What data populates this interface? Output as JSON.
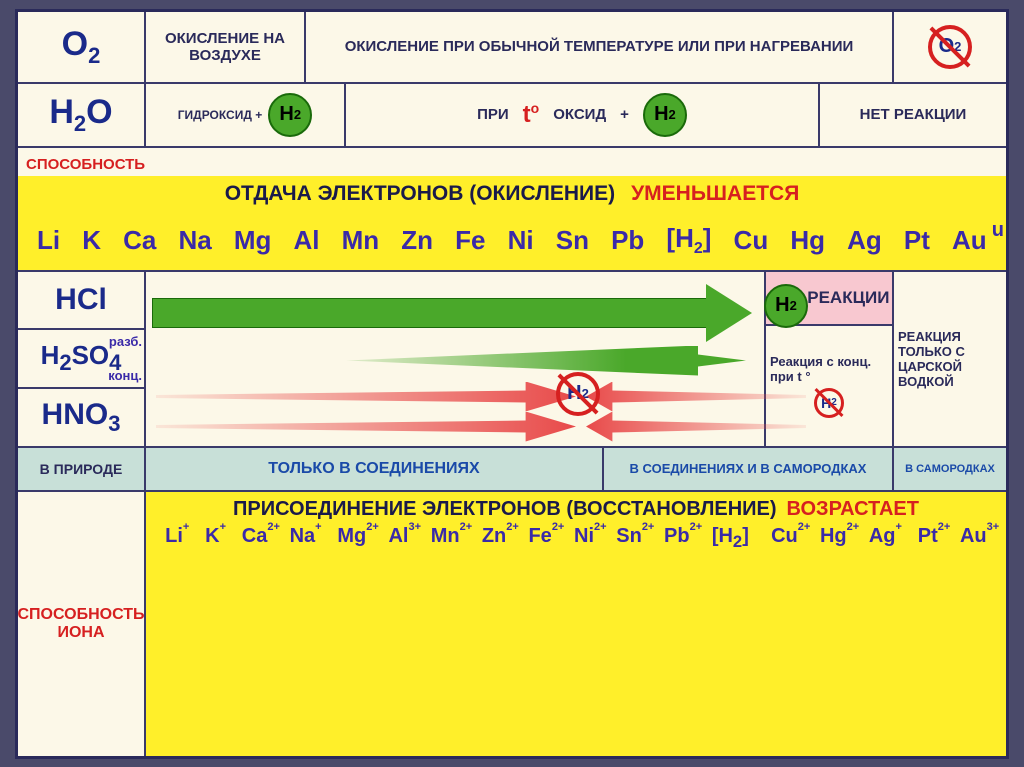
{
  "colors": {
    "bg": "#fcf8e8",
    "border": "#2a2a5a",
    "blue": "#1a2a8a",
    "red": "#d62020",
    "green": "#4aa82a",
    "yellow": "#ffef2a",
    "pink": "#f8c8d0",
    "teal": "#c8e0d8",
    "text_blue": "#1a4aa8"
  },
  "row_o2": {
    "formula": "O₂",
    "c1": "ОКИСЛЕНИЕ НА ВОЗДУХЕ",
    "c2": "ОКИСЛЕНИЕ ПРИ ОБЫЧНОЙ ТЕМПЕРАТУРЕ ИЛИ ПРИ НАГРЕВАНИИ",
    "no_sign": "O₂"
  },
  "row_h2o": {
    "formula": "H₂O",
    "c1_pre": "ГИДРОКСИД +",
    "c2_pre": "ПРИ",
    "c2_t": "t°",
    "c2_post": "ОКСИД",
    "c2_plus": "+",
    "c3": "НЕТ РЕАКЦИИ"
  },
  "series1": {
    "title1": "ОТДАЧА ЭЛЕКТРОНОВ (ОКИСЛЕНИЕ)",
    "title2": "УМЕНЬШАЕТСЯ",
    "side_label": "СПОСОБНОСТЬ",
    "elems": [
      "Li",
      "K",
      "Ca",
      "Na",
      "Mg",
      "Al",
      "Mn",
      "Zn",
      "Fe",
      "Ni",
      "Sn",
      "Pb",
      "[H₂]",
      "Cu",
      "Hg",
      "Ag",
      "Pt",
      "Au"
    ],
    "overflow": "u"
  },
  "acids": {
    "hcl": "HCl",
    "h2so4": "H₂SO₄",
    "hno3": "HNO₃",
    "razb": "разб.",
    "konc": "конц.",
    "r1_top": "НЕТ РЕАКЦИИ",
    "r1_mid": "Реакция с конц. при t °",
    "r2": "РЕАКЦИЯ ТОЛЬКО С ЦАРСКОЙ ВОДКОЙ"
  },
  "nature": {
    "c0": "В ПРИРОДЕ",
    "c1": "ТОЛЬКО В СОЕДИНЕНИЯХ",
    "c2": "В СОЕДИНЕНИЯХ  И В САМОРОДКАХ",
    "c3": "В САМОРОДКАХ"
  },
  "ions": {
    "label": "СПОСОБНОСТЬ ИОНА",
    "title1": "ПРИСОЕДИНЕНИЕ ЭЛЕКТРОНОВ (ВОССТАНОВЛЕНИЕ)",
    "title2": "ВОЗРАСТАЕТ",
    "series": [
      {
        "s": "Li",
        "c": "+"
      },
      {
        "s": "K",
        "c": "+"
      },
      {
        "s": "Ca",
        "c": "2+"
      },
      {
        "s": "Na",
        "c": "+"
      },
      {
        "s": "Mg",
        "c": "2+"
      },
      {
        "s": "Al",
        "c": "3+"
      },
      {
        "s": "Mn",
        "c": "2+"
      },
      {
        "s": "Zn",
        "c": "2+"
      },
      {
        "s": "Fe",
        "c": "2+"
      },
      {
        "s": "Ni",
        "c": "2+"
      },
      {
        "s": "Sn",
        "c": "2+"
      },
      {
        "s": "Pb",
        "c": "2+"
      },
      {
        "s": "[H₂]",
        "c": ""
      },
      {
        "s": "Cu",
        "c": "2+"
      },
      {
        "s": "Hg",
        "c": "2+"
      },
      {
        "s": "Ag",
        "c": "+"
      },
      {
        "s": "Pt",
        "c": "2+"
      },
      {
        "s": "Au",
        "c": "3+"
      }
    ]
  }
}
